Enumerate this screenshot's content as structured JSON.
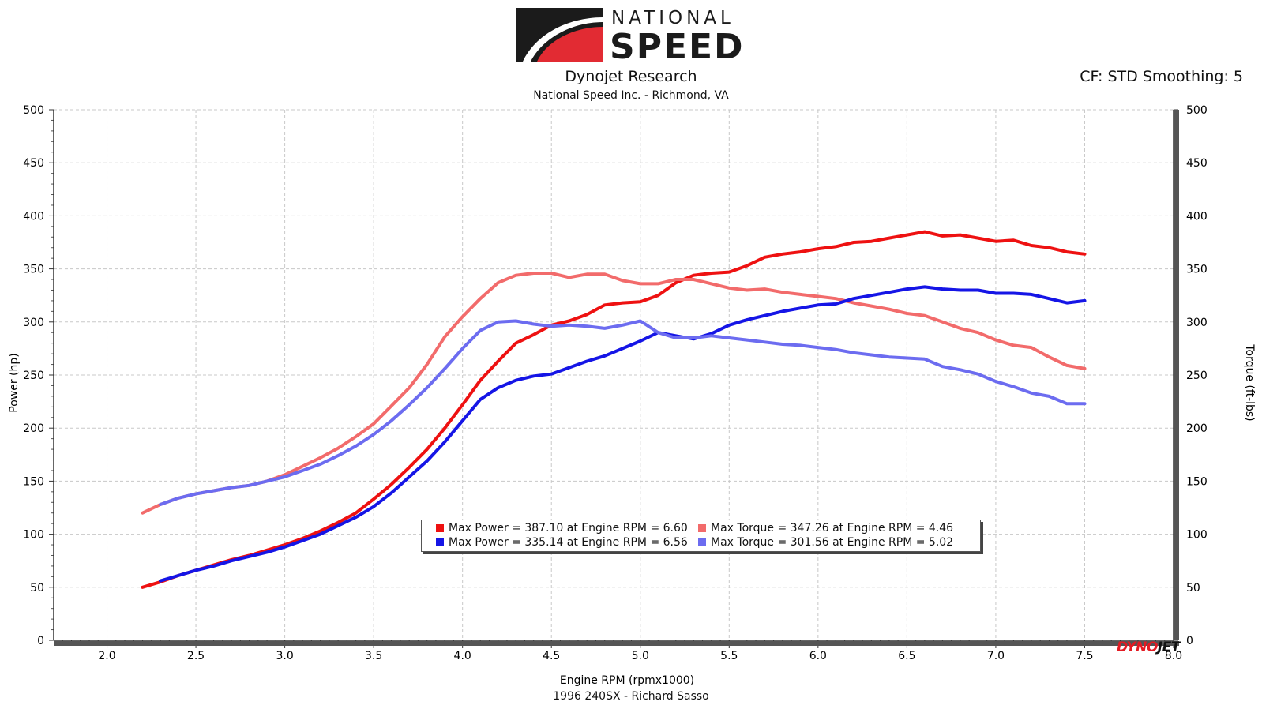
{
  "header": {
    "logo_top": "NATIONAL",
    "logo_bottom": "SPEED",
    "title": "Dynojet Research",
    "subtitle": "National Speed Inc. - Richmond, VA",
    "cf_info": "CF: STD Smoothing: 5"
  },
  "footer": {
    "caption": "1996 240SX - Richard Sasso"
  },
  "brand": {
    "part1": "DYNO",
    "part2": "JET"
  },
  "legend": {
    "items": [
      {
        "text": "Max Power = 387.10 at Engine RPM = 6.60",
        "color": "#ee1111"
      },
      {
        "text": "Max Torque = 347.26 at Engine RPM = 4.46",
        "color": "#f26b6b"
      },
      {
        "text": "Max Power = 335.14 at Engine RPM = 6.56",
        "color": "#1515e6"
      },
      {
        "text": "Max Torque = 301.56 at Engine RPM = 5.02",
        "color": "#6c6cf0"
      }
    ]
  },
  "chart_data": {
    "type": "line",
    "xlabel": "Engine RPM (rpmx1000)",
    "ylabel_left": "Power (hp)",
    "ylabel_right": "Torque (ft-lbs)",
    "xlim": [
      1.7,
      8.0
    ],
    "ylim": [
      0,
      500
    ],
    "x_ticks": [
      "2.0",
      "2.5",
      "3.0",
      "3.5",
      "4.0",
      "4.5",
      "5.0",
      "5.5",
      "6.0",
      "6.5",
      "7.0",
      "7.5",
      "8.0"
    ],
    "y_ticks": [
      "0",
      "50",
      "100",
      "150",
      "200",
      "250",
      "300",
      "350",
      "400",
      "450",
      "500"
    ],
    "grid": true,
    "series": [
      {
        "color": "#ee1111",
        "width": 4,
        "x": [
          2.2,
          2.3,
          2.4,
          2.5,
          2.6,
          2.7,
          2.8,
          2.9,
          3.0,
          3.1,
          3.2,
          3.3,
          3.4,
          3.5,
          3.6,
          3.7,
          3.8,
          3.9,
          4.0,
          4.1,
          4.2,
          4.3,
          4.4,
          4.5,
          4.6,
          4.7,
          4.8,
          4.9,
          5.0,
          5.1,
          5.2,
          5.3,
          5.4,
          5.5,
          5.6,
          5.7,
          5.8,
          5.9,
          6.0,
          6.1,
          6.2,
          6.3,
          6.4,
          6.5,
          6.6,
          6.7,
          6.8,
          6.9,
          7.0,
          7.1,
          7.2,
          7.3,
          7.4,
          7.5
        ],
        "y": [
          50,
          55,
          61,
          66,
          71,
          76,
          80,
          85,
          90,
          96,
          103,
          111,
          120,
          133,
          147,
          163,
          180,
          200,
          222,
          245,
          263,
          280,
          288,
          297,
          301,
          307,
          316,
          318,
          319,
          325,
          337,
          344,
          346,
          347,
          353,
          361,
          364,
          366,
          369,
          371,
          375,
          376,
          379,
          382,
          385,
          381,
          382,
          379,
          376,
          377,
          372,
          370,
          366,
          364
        ]
      },
      {
        "color": "#f26b6b",
        "width": 4,
        "x": [
          2.2,
          2.3,
          2.4,
          2.5,
          2.6,
          2.7,
          2.8,
          2.9,
          3.0,
          3.1,
          3.2,
          3.3,
          3.4,
          3.5,
          3.6,
          3.7,
          3.8,
          3.9,
          4.0,
          4.1,
          4.2,
          4.3,
          4.4,
          4.5,
          4.6,
          4.7,
          4.8,
          4.9,
          5.0,
          5.1,
          5.2,
          5.3,
          5.4,
          5.5,
          5.6,
          5.7,
          5.8,
          5.9,
          6.0,
          6.1,
          6.2,
          6.3,
          6.4,
          6.5,
          6.6,
          6.7,
          6.8,
          6.9,
          7.0,
          7.1,
          7.2,
          7.3,
          7.4,
          7.5
        ],
        "y": [
          120,
          128,
          134,
          138,
          141,
          144,
          146,
          150,
          156,
          164,
          172,
          181,
          192,
          204,
          221,
          238,
          260,
          286,
          305,
          322,
          337,
          344,
          346,
          346,
          342,
          345,
          345,
          339,
          336,
          336,
          340,
          340,
          336,
          332,
          330,
          331,
          328,
          326,
          324,
          322,
          318,
          315,
          312,
          308,
          306,
          300,
          294,
          290,
          283,
          278,
          276,
          267,
          259,
          256
        ]
      },
      {
        "color": "#1515e6",
        "width": 4,
        "x": [
          2.3,
          2.4,
          2.5,
          2.6,
          2.7,
          2.8,
          2.9,
          3.0,
          3.1,
          3.2,
          3.3,
          3.4,
          3.5,
          3.6,
          3.7,
          3.8,
          3.9,
          4.0,
          4.1,
          4.2,
          4.3,
          4.4,
          4.5,
          4.6,
          4.7,
          4.8,
          4.9,
          5.0,
          5.1,
          5.2,
          5.3,
          5.4,
          5.5,
          5.6,
          5.7,
          5.8,
          5.9,
          6.0,
          6.1,
          6.2,
          6.3,
          6.4,
          6.5,
          6.6,
          6.7,
          6.8,
          6.9,
          7.0,
          7.1,
          7.2,
          7.3,
          7.4,
          7.5
        ],
        "y": [
          56,
          61,
          66,
          70,
          75,
          79,
          83,
          88,
          94,
          100,
          108,
          116,
          126,
          139,
          154,
          169,
          187,
          207,
          227,
          238,
          245,
          249,
          251,
          257,
          263,
          268,
          275,
          282,
          290,
          287,
          284,
          289,
          297,
          302,
          306,
          310,
          313,
          316,
          317,
          322,
          325,
          328,
          331,
          333,
          331,
          330,
          330,
          327,
          327,
          326,
          322,
          318,
          320
        ]
      },
      {
        "color": "#6c6cf0",
        "width": 4,
        "x": [
          2.3,
          2.4,
          2.5,
          2.6,
          2.7,
          2.8,
          2.9,
          3.0,
          3.1,
          3.2,
          3.3,
          3.4,
          3.5,
          3.6,
          3.7,
          3.8,
          3.9,
          4.0,
          4.1,
          4.2,
          4.3,
          4.4,
          4.5,
          4.6,
          4.7,
          4.8,
          4.9,
          5.0,
          5.1,
          5.2,
          5.3,
          5.4,
          5.5,
          5.6,
          5.7,
          5.8,
          5.9,
          6.0,
          6.1,
          6.2,
          6.3,
          6.4,
          6.5,
          6.6,
          6.7,
          6.8,
          6.9,
          7.0,
          7.1,
          7.2,
          7.3,
          7.4,
          7.5
        ],
        "y": [
          128,
          134,
          138,
          141,
          144,
          146,
          150,
          154,
          160,
          166,
          174,
          183,
          194,
          207,
          222,
          238,
          256,
          275,
          292,
          300,
          301,
          298,
          296,
          297,
          296,
          294,
          297,
          301,
          290,
          285,
          285,
          287,
          285,
          283,
          281,
          279,
          278,
          276,
          274,
          271,
          269,
          267,
          266,
          265,
          258,
          255,
          251,
          244,
          239,
          233,
          230,
          223,
          223
        ]
      }
    ]
  }
}
